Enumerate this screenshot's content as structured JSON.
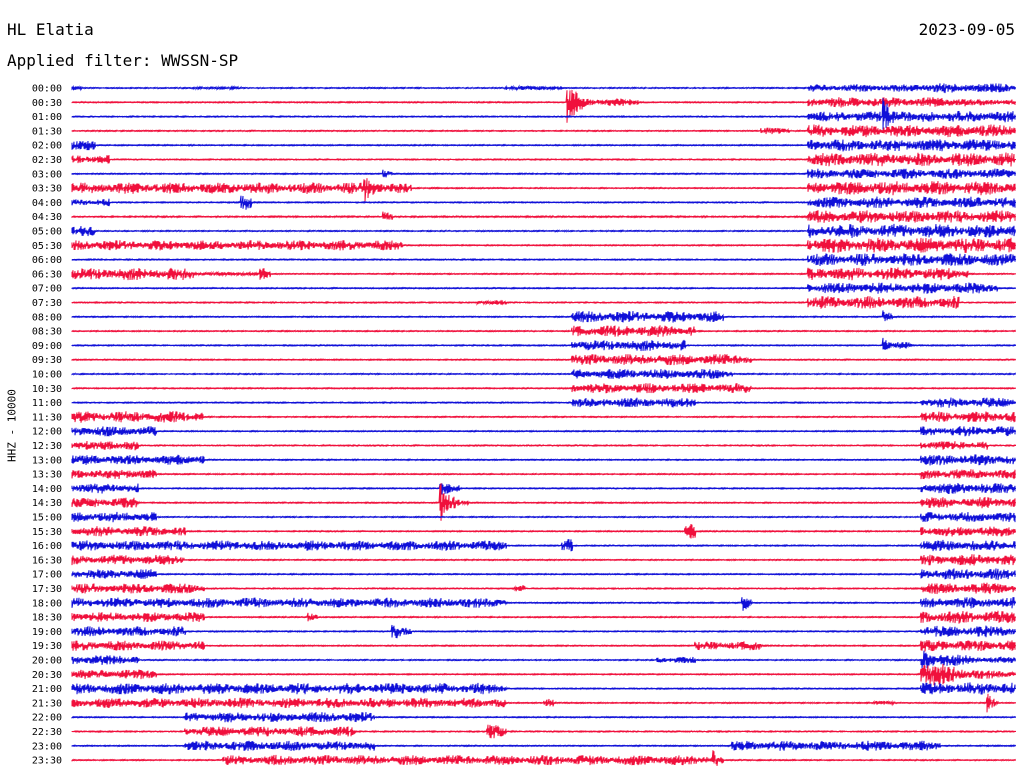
{
  "header": {
    "station": "HL Elatia",
    "date": "2023-09-05",
    "filter": "Applied filter: WWSSN-SP"
  },
  "chart_data": {
    "type": "line",
    "ylabel": "HHZ - 10000",
    "colors": {
      "even": "#1010d8",
      "odd": "#f0103c"
    },
    "rows": [
      {
        "label": "00:00",
        "segments": [
          [
            0,
            0.01,
            0.3
          ],
          [
            0.13,
            0.18,
            0.15
          ],
          [
            0.46,
            0.52,
            0.3
          ],
          [
            0.78,
            0.9,
            0.6
          ],
          [
            0.9,
            1.0,
            0.8
          ]
        ]
      },
      {
        "label": "00:30",
        "segments": [
          [
            0,
            1.0,
            0.08
          ],
          [
            0.525,
            0.56,
            3.0
          ],
          [
            0.56,
            0.6,
            0.6
          ],
          [
            0.78,
            0.95,
            0.8
          ],
          [
            0.95,
            1.0,
            0.5
          ]
        ]
      },
      {
        "label": "01:00",
        "segments": [
          [
            0,
            1.0,
            0.08
          ],
          [
            0.78,
            0.86,
            0.8
          ],
          [
            0.86,
            0.9,
            3.0
          ],
          [
            0.9,
            1.0,
            0.9
          ]
        ]
      },
      {
        "label": "01:30",
        "segments": [
          [
            0,
            1.0,
            0.08
          ],
          [
            0.73,
            0.76,
            0.5
          ],
          [
            0.78,
            1.0,
            1.0
          ]
        ]
      },
      {
        "label": "02:00",
        "segments": [
          [
            0,
            0.025,
            0.8
          ],
          [
            0.025,
            1.0,
            0.08
          ],
          [
            0.78,
            1.0,
            1.0
          ]
        ]
      },
      {
        "label": "02:30",
        "segments": [
          [
            0,
            0.04,
            0.7
          ],
          [
            0.04,
            1.0,
            0.08
          ],
          [
            0.78,
            1.0,
            1.1
          ]
        ]
      },
      {
        "label": "03:00",
        "segments": [
          [
            0,
            1.0,
            0.08
          ],
          [
            0.33,
            0.34,
            1.5
          ],
          [
            0.78,
            1.0,
            0.8
          ]
        ]
      },
      {
        "label": "03:30",
        "segments": [
          [
            0,
            0.31,
            0.9
          ],
          [
            0.31,
            0.34,
            3.5
          ],
          [
            0.34,
            0.36,
            0.8
          ],
          [
            0.78,
            1.0,
            1.1
          ]
        ]
      },
      {
        "label": "04:00",
        "segments": [
          [
            0,
            0.04,
            0.6
          ],
          [
            0.18,
            0.19,
            1.2
          ],
          [
            0.19,
            1.0,
            0.08
          ],
          [
            0.78,
            1.0,
            0.9
          ]
        ]
      },
      {
        "label": "04:30",
        "segments": [
          [
            0,
            1.0,
            0.1
          ],
          [
            0.33,
            0.34,
            1.0
          ],
          [
            0.78,
            1.0,
            1.0
          ]
        ]
      },
      {
        "label": "05:00",
        "segments": [
          [
            0,
            0.025,
            0.8
          ],
          [
            0.025,
            1.0,
            0.08
          ],
          [
            0.78,
            1.0,
            1.1
          ]
        ]
      },
      {
        "label": "05:30",
        "segments": [
          [
            0,
            0.35,
            0.8
          ],
          [
            0.35,
            1.0,
            0.08
          ],
          [
            0.78,
            1.0,
            1.2
          ]
        ]
      },
      {
        "label": "06:00",
        "segments": [
          [
            0,
            1.0,
            0.08
          ],
          [
            0.78,
            1.0,
            1.0
          ]
        ]
      },
      {
        "label": "06:30",
        "segments": [
          [
            0,
            0.13,
            1.0
          ],
          [
            0.13,
            0.2,
            0.25
          ],
          [
            0.2,
            0.21,
            1.6
          ],
          [
            0.21,
            1.0,
            0.08
          ],
          [
            0.78,
            0.95,
            1.0
          ]
        ]
      },
      {
        "label": "07:00",
        "segments": [
          [
            0,
            1.0,
            0.08
          ],
          [
            0.78,
            0.98,
            0.9
          ]
        ]
      },
      {
        "label": "07:30",
        "segments": [
          [
            0,
            1.0,
            0.08
          ],
          [
            0.43,
            0.46,
            0.4
          ],
          [
            0.78,
            0.94,
            1.0
          ]
        ]
      },
      {
        "label": "08:00",
        "segments": [
          [
            0,
            1.0,
            0.08
          ],
          [
            0.53,
            0.69,
            0.9
          ],
          [
            0.86,
            0.87,
            1.5
          ]
        ]
      },
      {
        "label": "08:30",
        "segments": [
          [
            0,
            1.0,
            0.08
          ],
          [
            0.53,
            0.66,
            0.9
          ]
        ]
      },
      {
        "label": "09:00",
        "segments": [
          [
            0,
            1.0,
            0.08
          ],
          [
            0.53,
            0.65,
            0.9
          ],
          [
            0.86,
            0.89,
            1.5
          ]
        ]
      },
      {
        "label": "09:30",
        "segments": [
          [
            0,
            1.0,
            0.08
          ],
          [
            0.53,
            0.72,
            0.9
          ]
        ]
      },
      {
        "label": "10:00",
        "segments": [
          [
            0,
            1.0,
            0.08
          ],
          [
            0.53,
            0.7,
            0.8
          ]
        ]
      },
      {
        "label": "10:30",
        "segments": [
          [
            0,
            1.0,
            0.08
          ],
          [
            0.53,
            0.72,
            0.8
          ]
        ]
      },
      {
        "label": "11:00",
        "segments": [
          [
            0,
            1.0,
            0.08
          ],
          [
            0.53,
            0.66,
            0.8
          ],
          [
            0.9,
            1.0,
            0.8
          ]
        ]
      },
      {
        "label": "11:30",
        "segments": [
          [
            0,
            0.14,
            0.9
          ],
          [
            0.14,
            1.0,
            0.08
          ],
          [
            0.9,
            1.0,
            0.9
          ]
        ]
      },
      {
        "label": "12:00",
        "segments": [
          [
            0,
            0.09,
            0.8
          ],
          [
            0.09,
            1.0,
            0.08
          ],
          [
            0.9,
            1.0,
            0.8
          ]
        ]
      },
      {
        "label": "12:30",
        "segments": [
          [
            0,
            0.07,
            0.8
          ],
          [
            0.07,
            1.0,
            0.08
          ],
          [
            0.9,
            0.97,
            0.7
          ]
        ]
      },
      {
        "label": "13:00",
        "segments": [
          [
            0,
            0.14,
            0.8
          ],
          [
            0.14,
            1.0,
            0.08
          ],
          [
            0.9,
            1.0,
            0.9
          ]
        ]
      },
      {
        "label": "13:30",
        "segments": [
          [
            0,
            0.09,
            0.8
          ],
          [
            0.09,
            1.0,
            0.08
          ],
          [
            0.9,
            1.0,
            0.8
          ]
        ]
      },
      {
        "label": "14:00",
        "segments": [
          [
            0,
            0.07,
            0.8
          ],
          [
            0.07,
            1.0,
            0.08
          ],
          [
            0.39,
            0.41,
            1.5
          ],
          [
            0.9,
            1.0,
            0.9
          ]
        ]
      },
      {
        "label": "14:30",
        "segments": [
          [
            0,
            0.07,
            0.8
          ],
          [
            0.07,
            1.0,
            0.08
          ],
          [
            0.39,
            0.42,
            3.0
          ],
          [
            0.9,
            1.0,
            0.9
          ]
        ]
      },
      {
        "label": "15:00",
        "segments": [
          [
            0,
            0.09,
            0.8
          ],
          [
            0.09,
            1.0,
            0.08
          ],
          [
            0.9,
            1.0,
            0.8
          ]
        ]
      },
      {
        "label": "15:30",
        "segments": [
          [
            0,
            0.12,
            0.8
          ],
          [
            0.12,
            1.0,
            0.08
          ],
          [
            0.65,
            0.66,
            1.2
          ],
          [
            0.9,
            1.0,
            0.8
          ]
        ]
      },
      {
        "label": "16:00",
        "segments": [
          [
            0,
            0.46,
            0.8
          ],
          [
            0.46,
            1.0,
            0.08
          ],
          [
            0.52,
            0.53,
            1.2
          ],
          [
            0.9,
            1.0,
            0.9
          ]
        ]
      },
      {
        "label": "16:30",
        "segments": [
          [
            0,
            0.12,
            0.8
          ],
          [
            0.12,
            1.0,
            0.08
          ],
          [
            0.9,
            1.0,
            0.9
          ]
        ]
      },
      {
        "label": "17:00",
        "segments": [
          [
            0,
            0.09,
            0.8
          ],
          [
            0.09,
            1.0,
            0.08
          ],
          [
            0.9,
            1.0,
            0.9
          ]
        ]
      },
      {
        "label": "17:30",
        "segments": [
          [
            0,
            0.14,
            0.8
          ],
          [
            0.14,
            1.0,
            0.08
          ],
          [
            0.47,
            0.48,
            0.8
          ],
          [
            0.9,
            1.0,
            0.9
          ]
        ]
      },
      {
        "label": "18:00",
        "segments": [
          [
            0,
            0.46,
            0.8
          ],
          [
            0.46,
            1.0,
            0.08
          ],
          [
            0.71,
            0.72,
            2.5
          ],
          [
            0.9,
            1.0,
            0.9
          ]
        ]
      },
      {
        "label": "18:30",
        "segments": [
          [
            0,
            0.14,
            0.8
          ],
          [
            0.14,
            1.0,
            0.08
          ],
          [
            0.25,
            0.26,
            1.3
          ],
          [
            0.9,
            1.0,
            1.0
          ]
        ]
      },
      {
        "label": "19:00",
        "segments": [
          [
            0,
            0.12,
            0.8
          ],
          [
            0.12,
            1.0,
            0.08
          ],
          [
            0.34,
            0.36,
            1.6
          ],
          [
            0.9,
            1.0,
            0.9
          ]
        ]
      },
      {
        "label": "19:30",
        "segments": [
          [
            0,
            0.14,
            0.8
          ],
          [
            0.14,
            1.0,
            0.08
          ],
          [
            0.66,
            0.73,
            0.7
          ],
          [
            0.9,
            1.0,
            0.9
          ]
        ]
      },
      {
        "label": "20:00",
        "segments": [
          [
            0,
            0.07,
            0.8
          ],
          [
            0.07,
            1.0,
            0.08
          ],
          [
            0.62,
            0.66,
            0.5
          ],
          [
            0.9,
            1.0,
            1.6
          ]
        ]
      },
      {
        "label": "20:30",
        "segments": [
          [
            0,
            0.09,
            0.8
          ],
          [
            0.09,
            1.0,
            0.08
          ],
          [
            0.9,
            1.0,
            2.5
          ]
        ]
      },
      {
        "label": "21:00",
        "segments": [
          [
            0,
            0.46,
            0.9
          ],
          [
            0.46,
            1.0,
            0.08
          ],
          [
            0.9,
            1.0,
            1.0
          ]
        ]
      },
      {
        "label": "21:30",
        "segments": [
          [
            0,
            0.46,
            0.8
          ],
          [
            0.46,
            1.0,
            0.08
          ],
          [
            0.5,
            0.51,
            0.8
          ],
          [
            0.85,
            0.87,
            0.3
          ],
          [
            0.97,
            0.98,
            2.5
          ]
        ]
      },
      {
        "label": "22:00",
        "segments": [
          [
            0,
            1.0,
            0.08
          ],
          [
            0.12,
            0.32,
            0.8
          ]
        ]
      },
      {
        "label": "22:30",
        "segments": [
          [
            0,
            1.0,
            0.08
          ],
          [
            0.12,
            0.3,
            0.8
          ],
          [
            0.44,
            0.46,
            1.2
          ]
        ]
      },
      {
        "label": "23:00",
        "segments": [
          [
            0,
            1.0,
            0.08
          ],
          [
            0.12,
            0.32,
            0.8
          ],
          [
            0.7,
            0.92,
            0.8
          ]
        ]
      },
      {
        "label": "23:30",
        "segments": [
          [
            0,
            1.0,
            0.08
          ],
          [
            0.16,
            0.68,
            0.8
          ],
          [
            0.68,
            0.69,
            1.8
          ]
        ]
      }
    ]
  }
}
